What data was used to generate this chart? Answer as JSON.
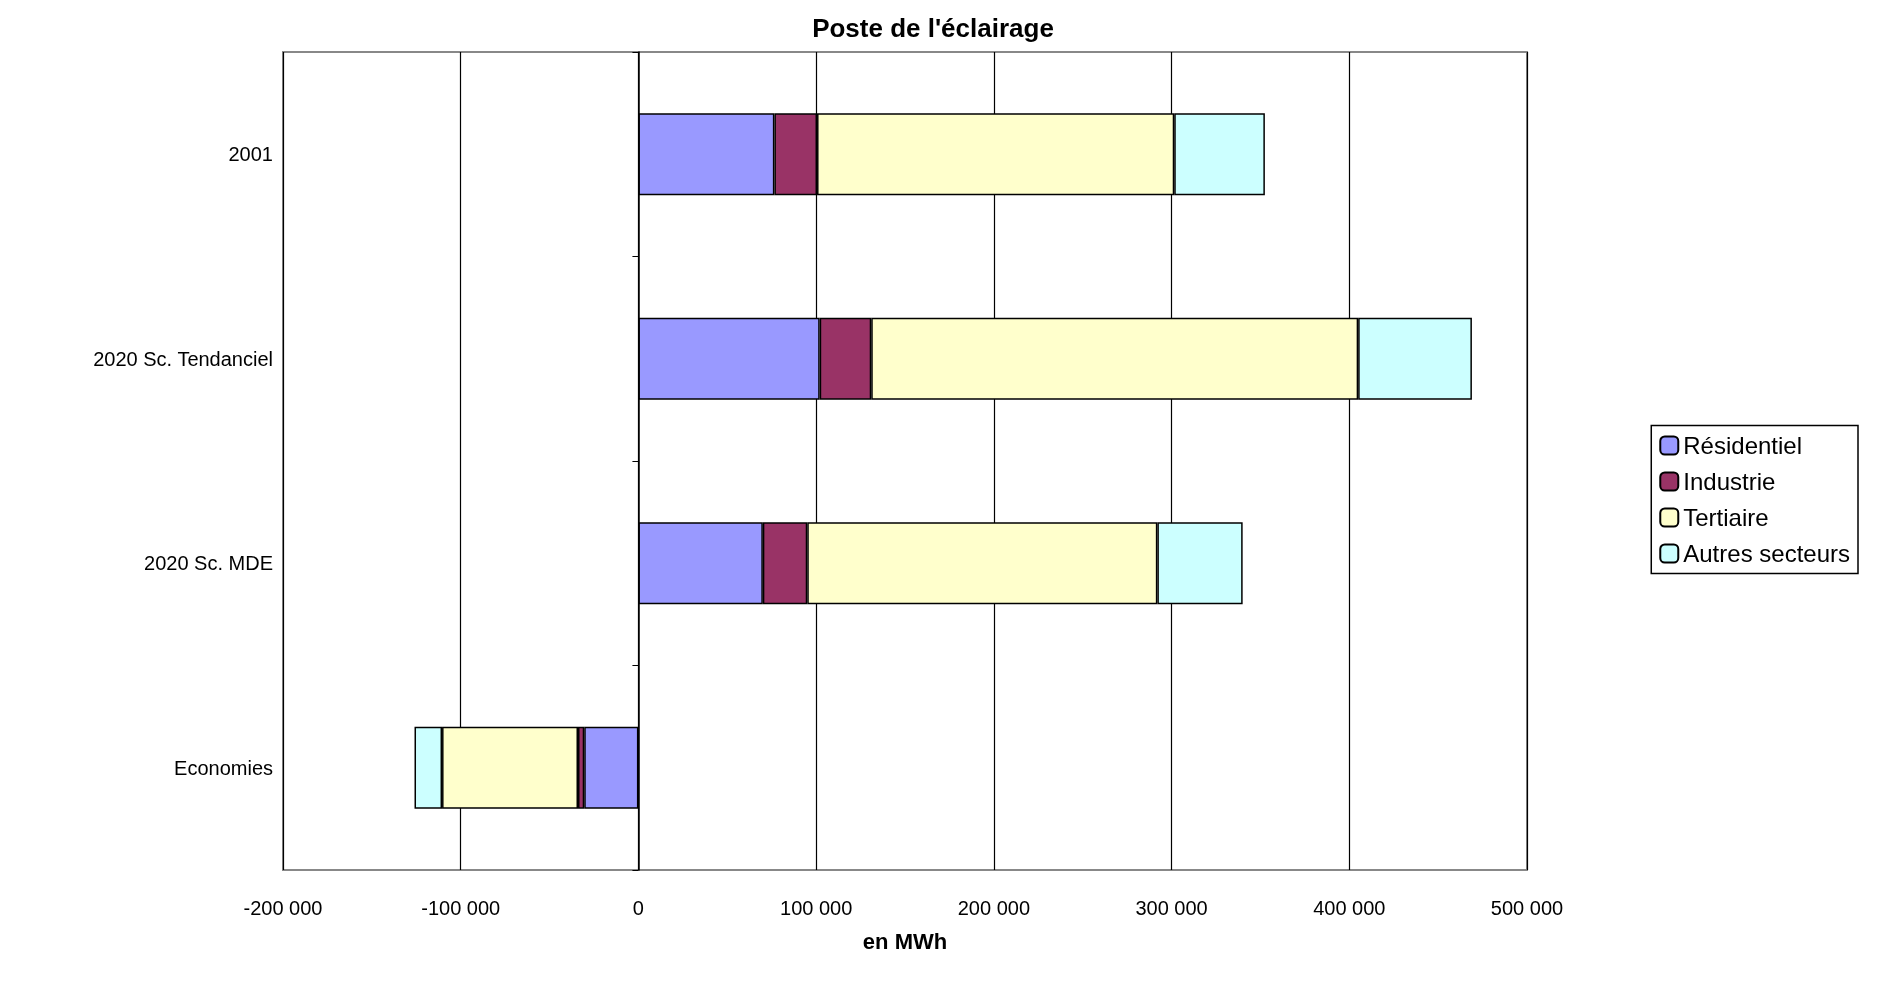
{
  "chart_data": {
    "type": "bar",
    "title": "Poste de l'éclairage",
    "xlabel": "en MWh",
    "orientation": "horizontal",
    "stacked": true,
    "categories": [
      "2001",
      "2020 Sc. Tendanciel",
      "2020 Sc. MDE",
      "Economies"
    ],
    "series": [
      {
        "name": "Résidentiel",
        "color": "#9999ff",
        "values": [
          76500,
          102000,
          70000,
          -30500
        ]
      },
      {
        "name": "Industrie",
        "color": "#993366",
        "values": [
          24000,
          29000,
          25000,
          -3500
        ]
      },
      {
        "name": "Tertiaire",
        "color": "#ffffcc",
        "values": [
          201000,
          274000,
          197000,
          -76500
        ]
      },
      {
        "name": "Autres secteurs",
        "color": "#ccffff",
        "values": [
          51000,
          64000,
          48000,
          -15500
        ]
      }
    ],
    "xlim": [
      -200000,
      500000
    ],
    "xticks": [
      {
        "value": -200000,
        "label": "-200 000"
      },
      {
        "value": -100000,
        "label": "-100 000"
      },
      0,
      {
        "value": 100000,
        "label": "100 000"
      },
      {
        "value": 200000,
        "label": "200 000"
      },
      {
        "value": 300000,
        "label": "300 000"
      },
      {
        "value": 400000,
        "label": "400 000"
      },
      {
        "value": 500000,
        "label": "500 000"
      }
    ],
    "grid": "x",
    "legend": "right"
  }
}
